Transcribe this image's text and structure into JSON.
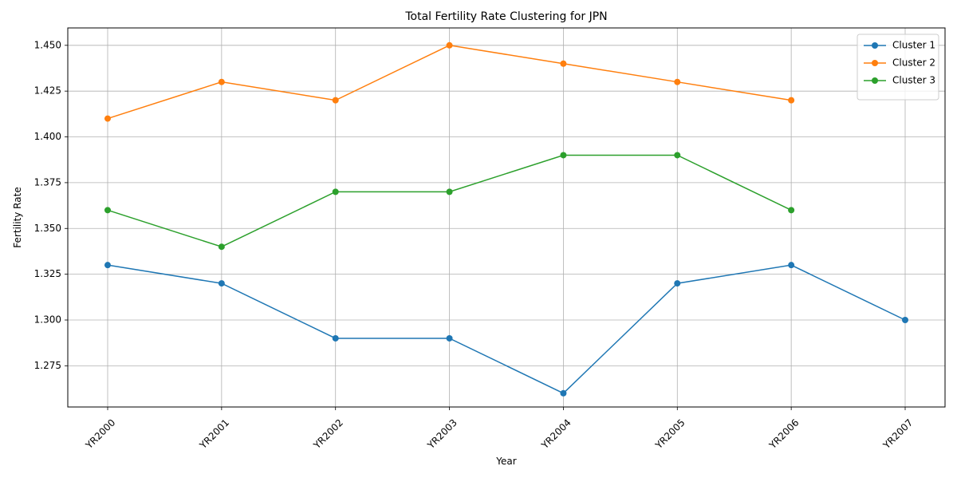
{
  "chart_data": {
    "type": "line",
    "title": "Total Fertility Rate Clustering for JPN",
    "xlabel": "Year",
    "ylabel": "Fertility Rate",
    "categories": [
      "YR2000",
      "YR2001",
      "YR2002",
      "YR2003",
      "YR2004",
      "YR2005",
      "YR2006",
      "YR2007"
    ],
    "ylim": [
      1.2525,
      1.4595
    ],
    "yticks": [
      1.275,
      1.3,
      1.325,
      1.35,
      1.375,
      1.4,
      1.425,
      1.45
    ],
    "ytick_labels": [
      "1.275",
      "1.300",
      "1.325",
      "1.350",
      "1.375",
      "1.400",
      "1.425",
      "1.450"
    ],
    "grid": true,
    "legend_position": "top-right",
    "series": [
      {
        "name": "Cluster 1",
        "color": "#1f77b4",
        "x": [
          "YR2000",
          "YR2001",
          "YR2002",
          "YR2003",
          "YR2004",
          "YR2005",
          "YR2006",
          "YR2007"
        ],
        "values": [
          1.33,
          1.32,
          1.29,
          1.29,
          1.26,
          1.32,
          1.33,
          1.3
        ]
      },
      {
        "name": "Cluster 2",
        "color": "#ff7f0e",
        "x": [
          "YR2000",
          "YR2001",
          "YR2002",
          "YR2003",
          "YR2004",
          "YR2005",
          "YR2006"
        ],
        "values": [
          1.41,
          1.43,
          1.42,
          1.45,
          1.44,
          1.43,
          1.42
        ]
      },
      {
        "name": "Cluster 3",
        "color": "#2ca02c",
        "x": [
          "YR2000",
          "YR2001",
          "YR2002",
          "YR2003",
          "YR2004",
          "YR2005",
          "YR2006"
        ],
        "values": [
          1.36,
          1.34,
          1.37,
          1.37,
          1.39,
          1.39,
          1.36
        ]
      }
    ]
  }
}
